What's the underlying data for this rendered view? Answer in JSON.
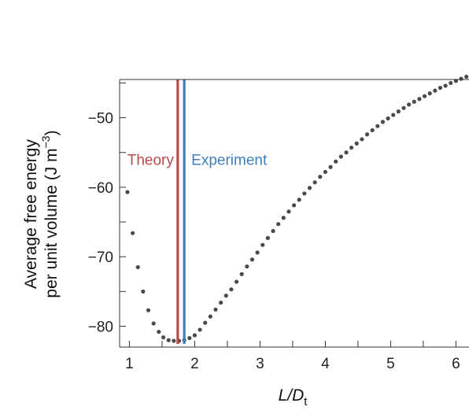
{
  "chart_data": {
    "type": "scatter",
    "title": "",
    "xlabel": {
      "main": "L/D",
      "sub": "t"
    },
    "ylabel": {
      "line1": "Average free energy",
      "line2_prefix": "per unit volume (J m",
      "line2_sup": "−3",
      "line2_suffix": ")"
    },
    "xlim": [
      0.85,
      6.2
    ],
    "ylim": [
      -83,
      -44.5
    ],
    "x_ticks": [
      1,
      2,
      3,
      4,
      5,
      6
    ],
    "x_tick_labels": [
      "1",
      "2",
      "3",
      "4",
      "5",
      "6"
    ],
    "y_ticks": [
      -50,
      -60,
      -70,
      -80
    ],
    "y_tick_labels": [
      "−50",
      "−60",
      "−70",
      "−80"
    ],
    "minor_x_ticks": [
      1.5,
      2.5,
      3.5,
      4.5,
      5.5
    ],
    "minor_y_ticks": [
      -45,
      -55,
      -65,
      -75
    ],
    "grid": false,
    "point_color": "#4a4a4a",
    "series": [
      {
        "x": [
          0.97,
          1.05,
          1.13,
          1.21,
          1.29,
          1.37,
          1.45,
          1.52,
          1.6,
          1.68,
          1.76,
          1.84,
          1.92,
          2.0,
          2.08,
          2.16,
          2.24,
          2.32,
          2.4,
          2.48,
          2.56,
          2.64,
          2.72,
          2.8,
          2.88,
          2.96,
          3.04,
          3.12,
          3.2,
          3.28,
          3.36,
          3.44,
          3.52,
          3.6,
          3.68,
          3.76,
          3.84,
          3.92,
          4.0,
          4.08,
          4.16,
          4.24,
          4.32,
          4.4,
          4.48,
          4.56,
          4.64,
          4.72,
          4.8,
          4.88,
          4.96,
          5.04,
          5.12,
          5.2,
          5.28,
          5.36,
          5.44,
          5.52,
          5.6,
          5.68,
          5.76,
          5.84,
          5.92,
          6.0,
          6.08,
          6.16
        ],
        "y": [
          -60.7,
          -66.6,
          -71.5,
          -75.0,
          -77.7,
          -79.6,
          -80.8,
          -81.6,
          -82.0,
          -82.1,
          -82.1,
          -82.0,
          -81.7,
          -81.3,
          -80.5,
          -79.5,
          -78.6,
          -77.6,
          -76.6,
          -75.6,
          -74.7,
          -73.6,
          -72.5,
          -71.4,
          -70.4,
          -69.4,
          -68.3,
          -67.3,
          -66.3,
          -65.3,
          -64.4,
          -63.5,
          -62.6,
          -61.8,
          -60.9,
          -60.1,
          -59.3,
          -58.5,
          -57.8,
          -57.1,
          -56.3,
          -55.6,
          -55.0,
          -54.3,
          -53.7,
          -53.1,
          -52.4,
          -51.8,
          -51.2,
          -50.6,
          -50.1,
          -49.6,
          -49.1,
          -48.6,
          -48.1,
          -47.7,
          -47.3,
          -46.9,
          -46.5,
          -46.1,
          -45.7,
          -45.4,
          -45.0,
          -44.7,
          -44.4,
          -44.1
        ]
      }
    ],
    "vlines": [
      {
        "label": "Theory",
        "x": 1.74,
        "color": "#b84a4a",
        "label_side": "left"
      },
      {
        "label": "Experiment",
        "x": 1.84,
        "color": "#3f7fb9",
        "label_side": "right"
      }
    ],
    "annotation_y": -56.8
  }
}
